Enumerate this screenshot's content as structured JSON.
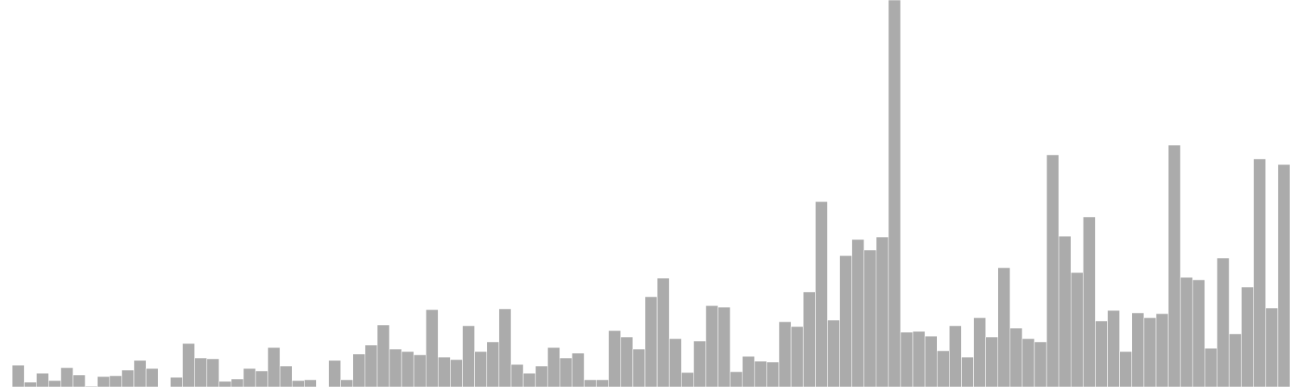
{
  "chart_data": {
    "type": "bar",
    "title": "",
    "xlabel": "",
    "ylabel": "",
    "ylim": [
      0,
      480
    ],
    "grid": false,
    "legend": "none",
    "bar_color": "#ababab",
    "background_color": "#ffffff",
    "values": [
      0,
      27,
      6,
      17,
      8,
      24,
      15,
      1,
      13,
      14,
      21,
      33,
      23,
      0,
      12,
      54,
      36,
      35,
      7,
      10,
      23,
      20,
      49,
      26,
      8,
      9,
      0,
      33,
      9,
      41,
      52,
      77,
      47,
      44,
      40,
      96,
      37,
      34,
      76,
      44,
      56,
      97,
      28,
      17,
      26,
      49,
      36,
      42,
      9,
      9,
      70,
      62,
      47,
      112,
      135,
      60,
      18,
      57,
      101,
      99,
      19,
      38,
      32,
      31,
      81,
      75,
      118,
      230,
      83,
      163,
      183,
      170,
      186,
      480,
      68,
      69,
      63,
      45,
      76,
      37,
      86,
      62,
      148,
      73,
      60,
      56,
      288,
      187,
      142,
      211,
      82,
      95,
      44,
      92,
      86,
      91,
      300,
      136,
      133,
      48,
      160,
      66,
      124,
      283,
      98,
      276
    ]
  }
}
